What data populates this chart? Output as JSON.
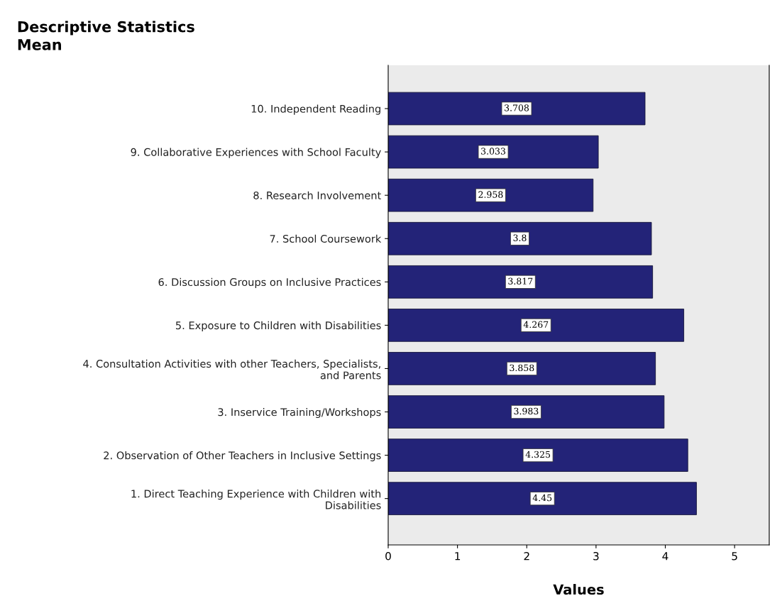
{
  "chart_data": {
    "type": "bar",
    "orientation": "horizontal",
    "title": "Descriptive Statistics",
    "subtitle": "Mean",
    "xlabel": "Values",
    "categories": [
      "10. Independent Reading",
      "9. Collaborative Experiences with School Faculty",
      "8. Research Involvement",
      "7. School Coursework",
      "6. Discussion Groups on Inclusive Practices",
      "5. Exposure to Children with Disabilities",
      "4. Consultation Activities with other Teachers, Specialists,\nand Parents",
      "3. Inservice Training/Workshops",
      "2. Observation of Other Teachers in Inclusive Settings",
      "1. Direct Teaching Experience with Children with\nDisabilities"
    ],
    "values": [
      3.708,
      3.033,
      2.958,
      3.8,
      3.817,
      4.267,
      3.858,
      3.983,
      4.325,
      4.45
    ],
    "color": "#232378",
    "data_labels": true,
    "grid": false,
    "legend": false,
    "xlim": [
      0,
      5.5
    ],
    "xticks": [
      0,
      1,
      2,
      3,
      4,
      5
    ]
  }
}
